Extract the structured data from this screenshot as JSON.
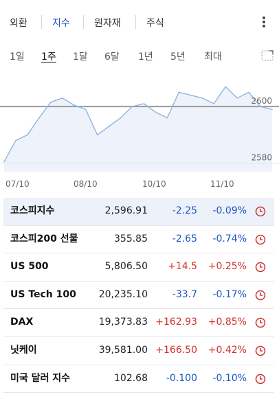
{
  "tabs": [
    {
      "label": "외환",
      "active": false
    },
    {
      "label": "지수",
      "active": true
    },
    {
      "label": "원자재",
      "active": false
    },
    {
      "label": "주식",
      "active": false
    }
  ],
  "ranges": [
    {
      "label": "1일",
      "active": false
    },
    {
      "label": "1주",
      "active": true
    },
    {
      "label": "1달",
      "active": false
    },
    {
      "label": "6달",
      "active": false
    },
    {
      "label": "1년",
      "active": false
    },
    {
      "label": "5년",
      "active": false
    },
    {
      "label": "최대",
      "active": false
    }
  ],
  "chart_data": {
    "type": "area",
    "x": [
      "07/10",
      "07/11",
      "07/12",
      "07/13",
      "07/14",
      "08/07",
      "08/08",
      "08/09",
      "08/10",
      "08/11",
      "08/12",
      "08/13",
      "10/08",
      "10/09",
      "10/10",
      "10/11",
      "10/12",
      "11/07",
      "11/08",
      "11/09",
      "11/10",
      "11/11",
      "11/12",
      "11/13"
    ],
    "values": [
      2580.5,
      2588,
      2590,
      2596,
      2601.5,
      2603,
      2600.5,
      2599,
      2590,
      2593,
      2596,
      2600,
      2601,
      2598,
      2596,
      2605,
      2604,
      2603,
      2601,
      2607,
      2603,
      2605,
      2600,
      2599
    ],
    "reference_line": 2600,
    "yticks": [
      2580,
      2600
    ],
    "xticks": [
      "07/10",
      "08/10",
      "10/10",
      "11/10"
    ],
    "ylim": [
      2577,
      2609
    ],
    "line_color": "#8fb5e0",
    "fill_color": "#eef3fb",
    "reference_color": "#9a9a9a"
  },
  "rows": [
    {
      "name": "코스피지수",
      "last": "2,596.91",
      "chg": "-2.25",
      "pct": "-0.09%",
      "dir": "down",
      "selected": true
    },
    {
      "name": "코스피200 선물",
      "last": "355.85",
      "chg": "-2.65",
      "pct": "-0.74%",
      "dir": "down",
      "selected": false
    },
    {
      "name": "US 500",
      "last": "5,806.50",
      "chg": "+14.5",
      "pct": "+0.25%",
      "dir": "up",
      "selected": false
    },
    {
      "name": "US Tech 100",
      "last": "20,235.10",
      "chg": "-33.7",
      "pct": "-0.17%",
      "dir": "down",
      "selected": false
    },
    {
      "name": "DAX",
      "last": "19,373.83",
      "chg": "+162.93",
      "pct": "+0.85%",
      "dir": "up",
      "selected": false
    },
    {
      "name": "닛케이",
      "last": "39,581.00",
      "chg": "+166.50",
      "pct": "+0.42%",
      "dir": "up",
      "selected": false
    },
    {
      "name": "미국 달러 지수",
      "last": "102.68",
      "chg": "-0.100",
      "pct": "-0.10%",
      "dir": "down",
      "selected": false
    }
  ],
  "colors": {
    "up": "#d32f2f",
    "down": "#1a56c2",
    "accent": "#1a56c2",
    "clock": "#d32f2f"
  },
  "icons": {
    "more": "vertical-ellipsis-icon",
    "expand": "expand-icon",
    "row": "clock-icon"
  }
}
